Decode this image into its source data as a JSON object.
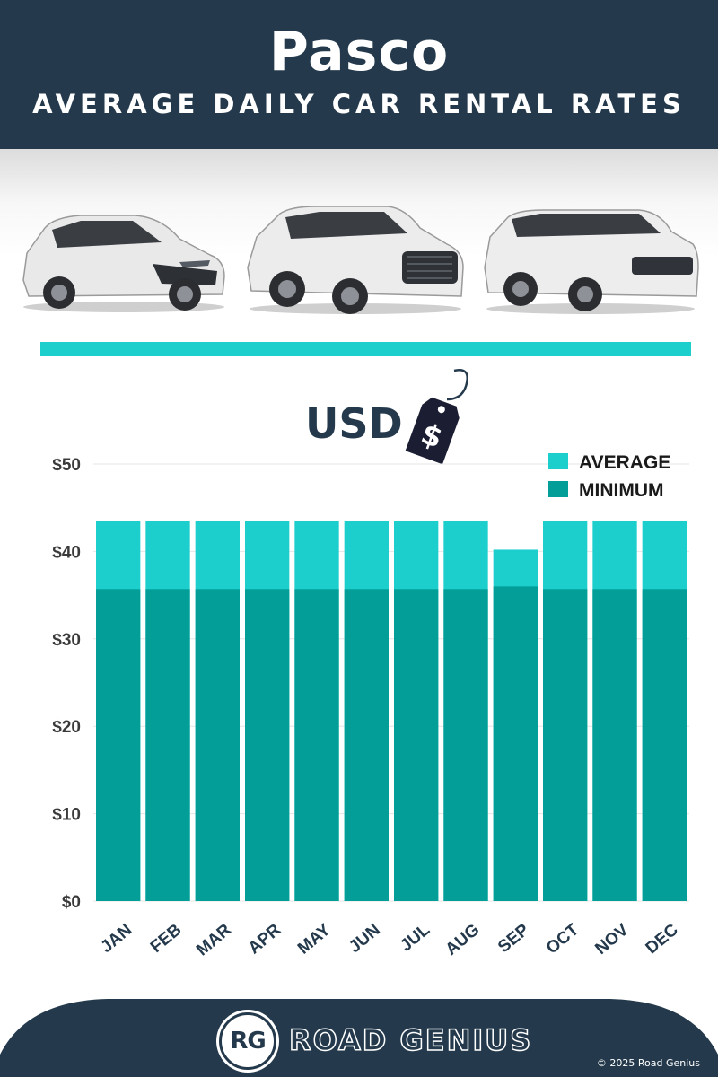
{
  "header": {
    "city": "Pasco",
    "subtitle": "AVERAGE DAILY CAR RENTAL RATES"
  },
  "currency_label": "USD",
  "currency_symbol": "$",
  "brand": {
    "logo_initials": "RG",
    "name": "ROAD GENIUS",
    "copyright": "© 2025 Road Genius"
  },
  "colors": {
    "navy": "#243a4c",
    "average": "#1ccfcc",
    "minimum": "#039e97",
    "accent_rule": "#1ccfcc"
  },
  "chart_data": {
    "type": "bar",
    "stacked_overlay": true,
    "categories": [
      "JAN",
      "FEB",
      "MAR",
      "APR",
      "MAY",
      "JUN",
      "JUL",
      "AUG",
      "SEP",
      "OCT",
      "NOV",
      "DEC"
    ],
    "series": [
      {
        "name": "AVERAGE",
        "values": [
          43.5,
          43.5,
          43.5,
          43.5,
          43.5,
          43.5,
          43.5,
          43.5,
          40.2,
          43.5,
          43.5,
          43.5
        ]
      },
      {
        "name": "MINIMUM",
        "values": [
          35.7,
          35.7,
          35.7,
          35.7,
          35.7,
          35.7,
          35.7,
          35.7,
          36.0,
          35.7,
          35.7,
          35.7
        ]
      }
    ],
    "y_ticks": [
      "$0",
      "$10",
      "$20",
      "$30",
      "$40",
      "$50"
    ],
    "ylim": [
      0,
      50
    ],
    "grid": true,
    "legend": "top-right"
  }
}
